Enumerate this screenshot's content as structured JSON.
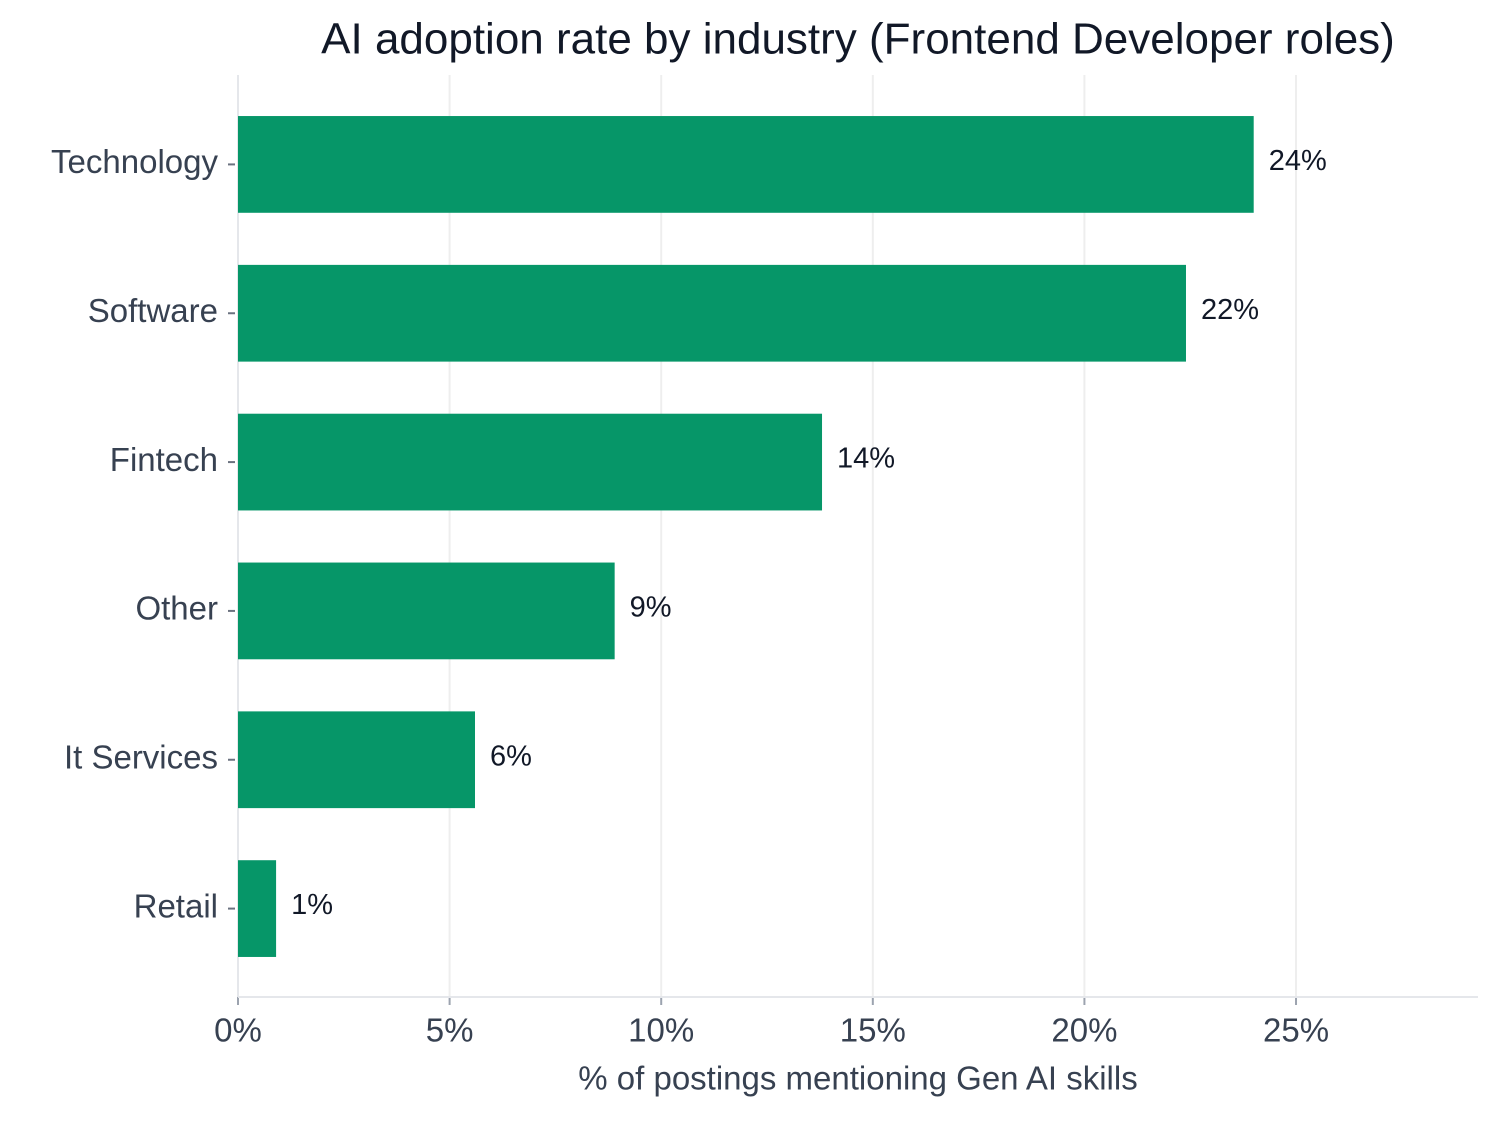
{
  "chart_data": {
    "type": "bar",
    "orientation": "horizontal",
    "title": "AI adoption rate by industry (Frontend Developer roles)",
    "x_label": "% of postings mentioning Gen AI skills",
    "categories": [
      "Technology",
      "Software",
      "Fintech",
      "Other",
      "It Services",
      "Retail"
    ],
    "values": [
      24.0,
      22.4,
      13.8,
      8.9,
      5.6,
      0.9
    ],
    "value_labels": [
      "24%",
      "22%",
      "14%",
      "9%",
      "6%",
      "1%"
    ],
    "color": "#069668",
    "xlim": [
      0,
      29.3
    ],
    "xticks": [
      {
        "value": 0,
        "label": "0%"
      },
      {
        "value": 5,
        "label": "5%"
      },
      {
        "value": 10,
        "label": "10%"
      },
      {
        "value": 15,
        "label": "15%"
      },
      {
        "value": 20,
        "label": "20%"
      },
      {
        "value": 25,
        "label": "25%"
      }
    ],
    "grid": true
  }
}
